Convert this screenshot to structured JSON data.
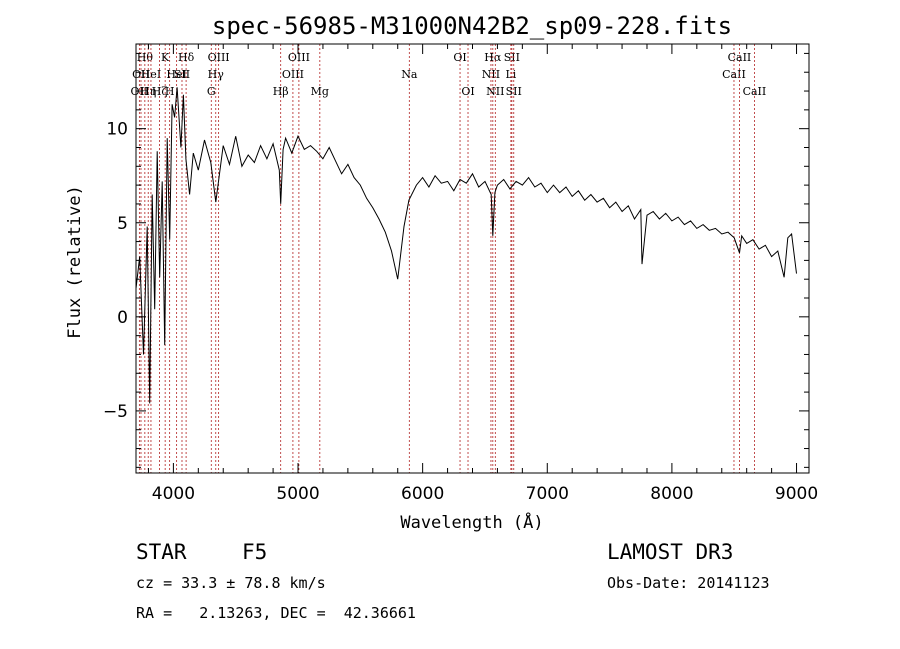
{
  "chart_data": {
    "type": "line",
    "title": "spec-56985-M31000N42B2_sp09-228.fits",
    "xlabel": "Wavelength (Å)",
    "ylabel": "Flux (relative)",
    "xlim": [
      3700,
      9100
    ],
    "ylim": [
      -8.3,
      14.5
    ],
    "xticks": [
      4000,
      5000,
      6000,
      7000,
      8000,
      9000
    ],
    "xtick_labels": [
      "4000",
      "5000",
      "6000",
      "7000",
      "8000",
      "9000"
    ],
    "yticks": [
      -5,
      0,
      5,
      10
    ],
    "ytick_labels": [
      "−5",
      "0",
      "5",
      "10"
    ],
    "series": [
      {
        "name": "flux",
        "x": [
          3700,
          3730,
          3760,
          3790,
          3810,
          3830,
          3850,
          3870,
          3890,
          3910,
          3930,
          3950,
          3970,
          3990,
          4010,
          4030,
          4060,
          4080,
          4100,
          4130,
          4160,
          4200,
          4250,
          4300,
          4340,
          4400,
          4450,
          4500,
          4550,
          4600,
          4650,
          4700,
          4750,
          4800,
          4850,
          4861,
          4880,
          4900,
          4950,
          5000,
          5050,
          5100,
          5150,
          5200,
          5250,
          5300,
          5350,
          5400,
          5450,
          5500,
          5550,
          5600,
          5650,
          5700,
          5750,
          5800,
          5850,
          5890,
          5950,
          6000,
          6050,
          6100,
          6150,
          6200,
          6250,
          6300,
          6350,
          6400,
          6450,
          6500,
          6550,
          6563,
          6580,
          6600,
          6650,
          6700,
          6750,
          6800,
          6850,
          6900,
          6950,
          7000,
          7050,
          7100,
          7150,
          7200,
          7250,
          7300,
          7350,
          7400,
          7450,
          7500,
          7550,
          7600,
          7650,
          7700,
          7750,
          7760,
          7800,
          7850,
          7900,
          7950,
          8000,
          8050,
          8100,
          8150,
          8200,
          8250,
          8300,
          8350,
          8400,
          8450,
          8500,
          8542,
          8560,
          8600,
          8650,
          8700,
          8750,
          8800,
          8850,
          8900,
          8930,
          8960,
          9000
        ],
        "y": [
          1.5,
          3.2,
          -2.0,
          4.8,
          -4.6,
          6.5,
          0.4,
          8.8,
          2.1,
          7.2,
          -1.5,
          9.5,
          4.1,
          11.3,
          10.6,
          12.2,
          9.0,
          11.8,
          8.4,
          6.5,
          8.7,
          7.8,
          9.4,
          8.2,
          6.1,
          9.1,
          8.1,
          9.6,
          8.0,
          8.6,
          8.2,
          9.1,
          8.4,
          9.2,
          7.8,
          6.0,
          8.9,
          9.5,
          8.7,
          9.6,
          8.9,
          9.1,
          8.8,
          8.4,
          9.0,
          8.3,
          7.6,
          8.1,
          7.4,
          7.0,
          6.3,
          5.8,
          5.2,
          4.5,
          3.5,
          2.0,
          4.8,
          6.2,
          7.0,
          7.4,
          6.9,
          7.5,
          7.1,
          7.2,
          6.7,
          7.3,
          7.1,
          7.6,
          6.9,
          7.2,
          6.5,
          4.3,
          6.6,
          7.0,
          7.3,
          6.8,
          7.2,
          7.0,
          7.4,
          6.9,
          7.1,
          6.6,
          7.0,
          6.6,
          6.9,
          6.4,
          6.7,
          6.2,
          6.5,
          6.1,
          6.3,
          5.8,
          6.1,
          5.6,
          5.9,
          5.2,
          5.7,
          2.8,
          5.4,
          5.6,
          5.2,
          5.5,
          5.1,
          5.3,
          4.9,
          5.1,
          4.7,
          4.9,
          4.6,
          4.7,
          4.4,
          4.5,
          4.2,
          3.4,
          4.3,
          3.9,
          4.1,
          3.6,
          3.8,
          3.2,
          3.5,
          2.1,
          4.2,
          4.4,
          2.3
        ]
      }
    ],
    "line_markers": [
      {
        "wavelength": 3727,
        "name": "OII",
        "row": 3
      },
      {
        "wavelength": 3740,
        "name": "OII",
        "row": 2
      },
      {
        "wavelength": 3771,
        "name": "Hθ",
        "row": 1
      },
      {
        "wavelength": 3798,
        "name": "Hη",
        "row": 3
      },
      {
        "wavelength": 3820,
        "name": "HeI",
        "row": 2
      },
      {
        "wavelength": 3889,
        "name": "Hζ",
        "row": 3
      },
      {
        "wavelength": 3934,
        "name": "K",
        "row": 1
      },
      {
        "wavelength": 3970,
        "name": "H",
        "row": 3
      },
      {
        "wavelength": 4026,
        "name": "HeI",
        "row": 2
      },
      {
        "wavelength": 4069,
        "name": "SII",
        "row": 2
      },
      {
        "wavelength": 4102,
        "name": "Hδ",
        "row": 1
      },
      {
        "wavelength": 4304,
        "name": "G",
        "row": 3
      },
      {
        "wavelength": 4340,
        "name": "Hγ",
        "row": 2
      },
      {
        "wavelength": 4363,
        "name": "OIII",
        "row": 1
      },
      {
        "wavelength": 4861,
        "name": "Hβ",
        "row": 3
      },
      {
        "wavelength": 4959,
        "name": "OIII",
        "row": 2
      },
      {
        "wavelength": 5007,
        "name": "OIII",
        "row": 1
      },
      {
        "wavelength": 5175,
        "name": "Mg",
        "row": 3
      },
      {
        "wavelength": 5893,
        "name": "Na",
        "row": 2
      },
      {
        "wavelength": 6300,
        "name": "OI",
        "row": 1
      },
      {
        "wavelength": 6364,
        "name": "OI",
        "row": 3
      },
      {
        "wavelength": 6548,
        "name": "NII",
        "row": 2
      },
      {
        "wavelength": 6563,
        "name": "Hα",
        "row": 1
      },
      {
        "wavelength": 6583,
        "name": "NII",
        "row": 3
      },
      {
        "wavelength": 6708,
        "name": "Li",
        "row": 2
      },
      {
        "wavelength": 6716,
        "name": "SII",
        "row": 1
      },
      {
        "wavelength": 6731,
        "name": "SII",
        "row": 3
      },
      {
        "wavelength": 8498,
        "name": "CaII",
        "row": 2
      },
      {
        "wavelength": 8542,
        "name": "CaII",
        "row": 1
      },
      {
        "wavelength": 8662,
        "name": "CaII",
        "row": 3
      }
    ],
    "marker_color": "#b22222",
    "line_color": "#000000"
  },
  "info": {
    "object_class": "STAR",
    "subclass": "F5",
    "survey": "LAMOST DR3",
    "cz": "cz = 33.3 ± 78.8 km/s",
    "obs_date": "Obs-Date: 20141123",
    "coords": "RA =   2.13263, DEC =  42.36661"
  }
}
